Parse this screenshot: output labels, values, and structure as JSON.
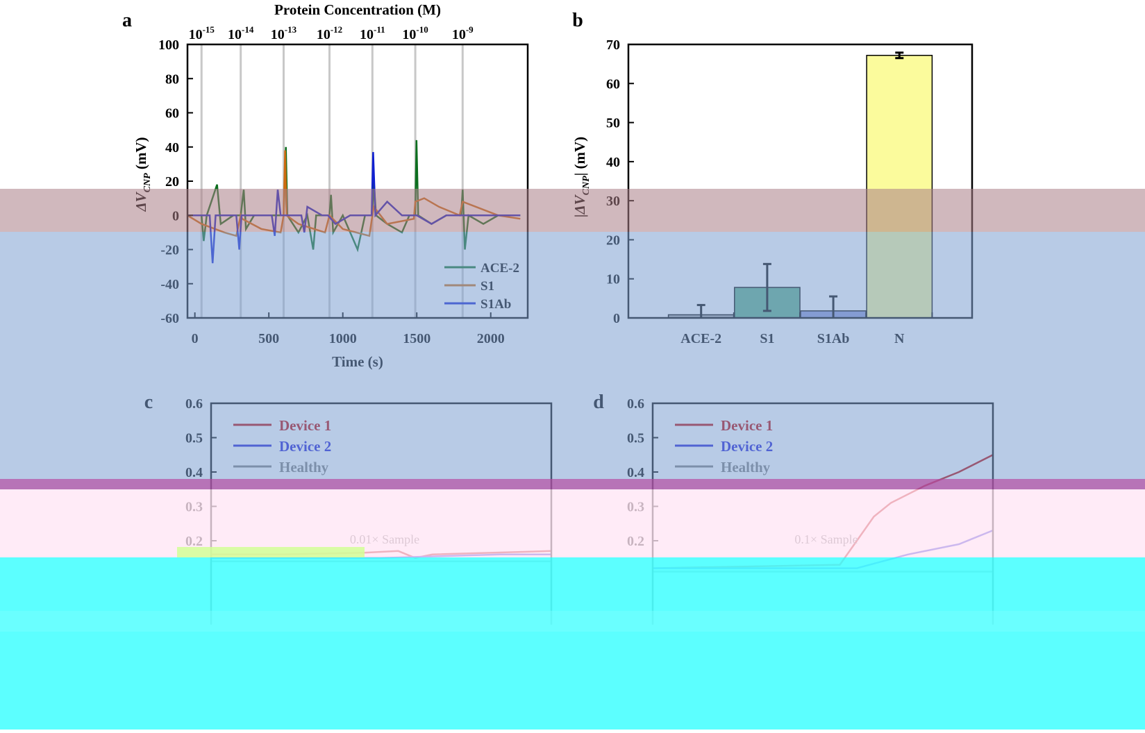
{
  "panel_labels": [
    "a",
    "b",
    "c",
    "d"
  ],
  "chart_data": [
    {
      "panel": "a",
      "type": "line",
      "top_axis_label": "Protein Concentration (M)",
      "concentration_labels": [
        {
          "base": "10",
          "exp": "-15",
          "time": 45
        },
        {
          "base": "10",
          "exp": "-14",
          "time": 310
        },
        {
          "base": "10",
          "exp": "-13",
          "time": 600
        },
        {
          "base": "10",
          "exp": "-12",
          "time": 910
        },
        {
          "base": "10",
          "exp": "-11",
          "time": 1200
        },
        {
          "base": "10",
          "exp": "-10",
          "time": 1490
        },
        {
          "base": "10",
          "exp": "-9",
          "time": 1810
        }
      ],
      "xlabel": "Time (s)",
      "ylabel": "ΔV",
      "ylabel_sub": "CNP",
      "ylabel_unit": " (mV)",
      "xlim": [
        -50,
        2250
      ],
      "ylim": [
        -60,
        100
      ],
      "xticks": [
        0,
        500,
        1000,
        1500,
        2000
      ],
      "yticks": [
        100,
        80,
        60,
        40,
        20,
        0,
        -20,
        -40,
        -60
      ],
      "legend": "lower-right",
      "series": [
        {
          "name": "ACE-2",
          "color": "#0d6e1f",
          "points": [
            [
              -50,
              0
            ],
            [
              45,
              0
            ],
            [
              60,
              -15
            ],
            [
              80,
              0
            ],
            [
              150,
              18
            ],
            [
              175,
              -5
            ],
            [
              260,
              0
            ],
            [
              310,
              0
            ],
            [
              330,
              15
            ],
            [
              345,
              -8
            ],
            [
              400,
              0
            ],
            [
              600,
              0
            ],
            [
              615,
              40
            ],
            [
              625,
              0
            ],
            [
              700,
              -10
            ],
            [
              760,
              0
            ],
            [
              800,
              -20
            ],
            [
              820,
              0
            ],
            [
              910,
              0
            ],
            [
              920,
              12
            ],
            [
              935,
              -10
            ],
            [
              1000,
              0
            ],
            [
              1100,
              -20
            ],
            [
              1150,
              0
            ],
            [
              1200,
              0
            ],
            [
              1210,
              20
            ],
            [
              1225,
              0
            ],
            [
              1300,
              -5
            ],
            [
              1400,
              -10
            ],
            [
              1450,
              0
            ],
            [
              1490,
              0
            ],
            [
              1498,
              44
            ],
            [
              1510,
              0
            ],
            [
              1600,
              -5
            ],
            [
              1700,
              0
            ],
            [
              1800,
              0
            ],
            [
              1810,
              15
            ],
            [
              1825,
              -20
            ],
            [
              1850,
              0
            ],
            [
              1950,
              -5
            ],
            [
              2050,
              0
            ],
            [
              2200,
              0
            ]
          ]
        },
        {
          "name": "S1",
          "color": "#cc6a10",
          "points": [
            [
              -50,
              0
            ],
            [
              45,
              -5
            ],
            [
              200,
              -10
            ],
            [
              280,
              -12
            ],
            [
              310,
              0
            ],
            [
              320,
              -2
            ],
            [
              450,
              -8
            ],
            [
              580,
              -10
            ],
            [
              600,
              0
            ],
            [
              610,
              38
            ],
            [
              620,
              0
            ],
            [
              700,
              -5
            ],
            [
              880,
              -10
            ],
            [
              910,
              0
            ],
            [
              1000,
              -8
            ],
            [
              1180,
              -12
            ],
            [
              1200,
              0
            ],
            [
              1210,
              5
            ],
            [
              1300,
              -5
            ],
            [
              1480,
              -2
            ],
            [
              1490,
              8
            ],
            [
              1550,
              10
            ],
            [
              1650,
              5
            ],
            [
              1790,
              0
            ],
            [
              1810,
              8
            ],
            [
              1900,
              5
            ],
            [
              2050,
              0
            ],
            [
              2200,
              -2
            ]
          ]
        },
        {
          "name": "S1Ab",
          "color": "#1020d0",
          "points": [
            [
              -50,
              0
            ],
            [
              45,
              0
            ],
            [
              100,
              0
            ],
            [
              120,
              -28
            ],
            [
              140,
              0
            ],
            [
              280,
              0
            ],
            [
              300,
              -20
            ],
            [
              315,
              0
            ],
            [
              520,
              0
            ],
            [
              540,
              -12
            ],
            [
              560,
              15
            ],
            [
              580,
              0
            ],
            [
              720,
              0
            ],
            [
              740,
              -10
            ],
            [
              760,
              5
            ],
            [
              860,
              0
            ],
            [
              900,
              0
            ],
            [
              950,
              -5
            ],
            [
              1050,
              0
            ],
            [
              1150,
              0
            ],
            [
              1195,
              0
            ],
            [
              1205,
              37
            ],
            [
              1220,
              0
            ],
            [
              1300,
              8
            ],
            [
              1400,
              0
            ],
            [
              1500,
              0
            ],
            [
              1600,
              -5
            ],
            [
              1700,
              0
            ],
            [
              1900,
              0
            ],
            [
              2200,
              0
            ]
          ]
        }
      ]
    },
    {
      "panel": "b",
      "type": "bar",
      "categories": [
        "ACE-2",
        "S1",
        "S1Ab",
        "N"
      ],
      "values": [
        0.8,
        7.8,
        1.8,
        67.2
      ],
      "errors": [
        2.5,
        6.0,
        3.7,
        0.7
      ],
      "colors": [
        "#a8a8a8",
        "#5cae86",
        "#8c97d4",
        "#fbfb9c"
      ],
      "ylabel": "|ΔV",
      "ylabel_sub": "CNP",
      "ylabel_unit": "| (mV)",
      "ylim": [
        0,
        70
      ],
      "yticks": [
        0,
        10,
        20,
        30,
        40,
        50,
        60,
        70
      ]
    },
    {
      "panel": "c",
      "type": "line",
      "annotation": "0.01× Sample",
      "ylim": [
        0,
        0.6
      ],
      "yticks": [
        0.6,
        0.5,
        0.4,
        0.3,
        0.2
      ],
      "legend": "top-left",
      "series": [
        {
          "name": "Device 1",
          "color": "#b80000",
          "points": [
            [
              0,
              0.16
            ],
            [
              0.2,
              0.16
            ],
            [
              0.45,
              0.165
            ],
            [
              0.55,
              0.17
            ],
            [
              0.6,
              0.15
            ],
            [
              0.65,
              0.16
            ],
            [
              1.0,
              0.17
            ]
          ]
        },
        {
          "name": "Device 2",
          "color": "#1a1ad6",
          "points": [
            [
              0,
              0.15
            ],
            [
              0.2,
              0.15
            ],
            [
              0.5,
              0.15
            ],
            [
              0.85,
              0.16
            ],
            [
              1.0,
              0.16
            ]
          ]
        },
        {
          "name": "Healthy",
          "color": "#7a7a7a",
          "points": [
            [
              0,
              0.14
            ],
            [
              0.5,
              0.14
            ],
            [
              1.0,
              0.14
            ]
          ]
        }
      ]
    },
    {
      "panel": "d",
      "type": "line",
      "annotation": "0.1× Sample",
      "ylim": [
        0,
        0.6
      ],
      "yticks": [
        0.6,
        0.5,
        0.4,
        0.3,
        0.2
      ],
      "legend": "top-left",
      "series": [
        {
          "name": "Device 1",
          "color": "#b80000",
          "points": [
            [
              0,
              0.12
            ],
            [
              0.55,
              0.13
            ],
            [
              0.6,
              0.2
            ],
            [
              0.65,
              0.27
            ],
            [
              0.7,
              0.31
            ],
            [
              0.8,
              0.36
            ],
            [
              0.9,
              0.4
            ],
            [
              1.0,
              0.45
            ]
          ]
        },
        {
          "name": "Device 2",
          "color": "#1a1ad6",
          "points": [
            [
              0,
              0.12
            ],
            [
              0.6,
              0.12
            ],
            [
              0.75,
              0.16
            ],
            [
              0.9,
              0.19
            ],
            [
              1.0,
              0.23
            ]
          ]
        },
        {
          "name": "Healthy",
          "color": "#7a7a7a",
          "points": [
            [
              0,
              0.11
            ],
            [
              0.5,
              0.11
            ],
            [
              1.0,
              0.11
            ]
          ]
        }
      ]
    }
  ]
}
